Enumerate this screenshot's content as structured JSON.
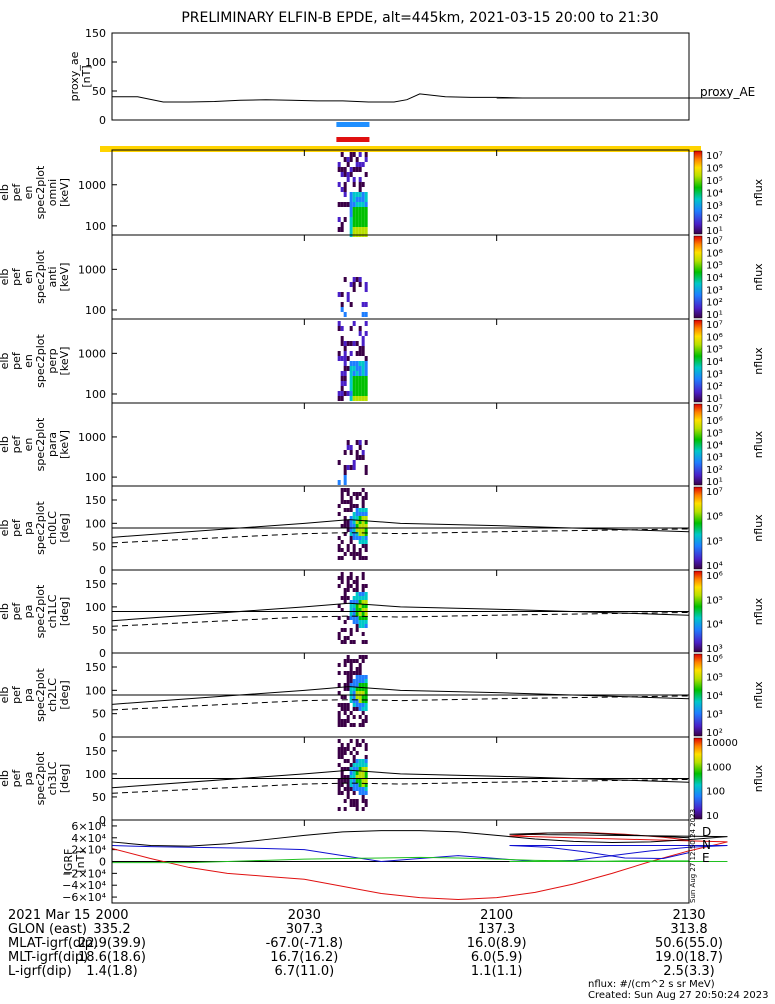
{
  "title": "PRELIMINARY ELFIN-B EPDE, alt=445km, 2021-03-15 20:00 to 21:30",
  "colors": {
    "science_zone_blue": "#1f8fff",
    "science_zone_red": "#e01010",
    "orbit_bar_yellow": "#ffd400",
    "mag_D": "#e01010",
    "mag_N": "#1010d0",
    "mag_E": "#20c020"
  },
  "chart_data": [
    {
      "type": "line",
      "name": "proxy_ae",
      "ylabel": [
        "proxy_ae",
        "[nT]"
      ],
      "ylim": [
        0,
        150
      ],
      "yticks": [
        "150",
        "100",
        "50",
        "0"
      ],
      "legend": "proxy_AE",
      "x": [
        2000,
        2004,
        2008,
        2012,
        2016,
        2020,
        2024,
        2028,
        2032,
        2036,
        2040,
        2044,
        2046,
        2048,
        2052,
        2056,
        2060,
        2064,
        2068,
        2072,
        2076,
        2080,
        2084,
        2088,
        2092,
        2096,
        2100,
        2104,
        2108,
        2112,
        2116,
        2120,
        2124,
        2130
      ],
      "values": [
        40,
        40,
        31,
        31,
        32,
        34,
        35,
        34,
        33,
        33,
        31,
        31,
        35,
        45,
        40,
        39,
        39,
        38,
        38,
        38,
        38,
        38,
        38,
        38,
        38,
        38,
        38,
        38,
        38,
        38,
        38,
        38,
        38,
        38
      ]
    },
    {
      "type": "heatmap",
      "name": "energy-omni",
      "ylabel": [
        "elb",
        "pef",
        "en",
        "spec2plot",
        "omni",
        "[keV]"
      ],
      "ylim": [
        60,
        7000
      ],
      "yscale": "log",
      "yticks": [
        "1000",
        "100"
      ],
      "colorbar_ticks": [
        "10⁷",
        "10⁶",
        "10⁵",
        "10⁴",
        "10³",
        "10²",
        "10¹"
      ],
      "colorbar_label": "nflux"
    },
    {
      "type": "heatmap",
      "name": "energy-anti",
      "ylabel": [
        "elb",
        "pef",
        "en",
        "spec2plot",
        "anti",
        "[keV]"
      ],
      "ylim": [
        60,
        7000
      ],
      "yscale": "log",
      "yticks": [
        "1000",
        "100"
      ],
      "colorbar_ticks": [
        "10⁷",
        "10⁶",
        "10⁵",
        "10⁴",
        "10³",
        "10²",
        "10¹"
      ],
      "colorbar_label": "nflux"
    },
    {
      "type": "heatmap",
      "name": "energy-perp",
      "ylabel": [
        "elb",
        "pef",
        "en",
        "spec2plot",
        "perp",
        "[keV]"
      ],
      "ylim": [
        60,
        7000
      ],
      "yscale": "log",
      "yticks": [
        "1000",
        "100"
      ],
      "colorbar_ticks": [
        "10⁷",
        "10⁶",
        "10⁵",
        "10⁴",
        "10³",
        "10²",
        "10¹"
      ],
      "colorbar_label": "nflux"
    },
    {
      "type": "heatmap",
      "name": "energy-para",
      "ylabel": [
        "elb",
        "pef",
        "en",
        "spec2plot",
        "para",
        "[keV]"
      ],
      "ylim": [
        60,
        7000
      ],
      "yscale": "log",
      "yticks": [
        "1000",
        "100"
      ],
      "colorbar_ticks": [
        "10⁷",
        "10⁶",
        "10⁵",
        "10⁴",
        "10³",
        "10²",
        "10¹"
      ],
      "colorbar_label": "nflux"
    },
    {
      "type": "heatmap",
      "name": "pitch-ch0",
      "ylabel": [
        "elb",
        "pef",
        "pa",
        "spec2plot",
        "ch0LC",
        "[deg]"
      ],
      "ylim": [
        0,
        180
      ],
      "yticks": [
        "150",
        "100",
        "50",
        "0"
      ],
      "colorbar_ticks": [
        "10⁷",
        "10⁶",
        "10⁵",
        "10⁴"
      ],
      "colorbar_label": "nflux"
    },
    {
      "type": "heatmap",
      "name": "pitch-ch1",
      "ylabel": [
        "elb",
        "pef",
        "pa",
        "spec2plot",
        "ch1LC",
        "[deg]"
      ],
      "ylim": [
        0,
        180
      ],
      "yticks": [
        "150",
        "100",
        "50",
        "0"
      ],
      "colorbar_ticks": [
        "10⁶",
        "10⁵",
        "10⁴",
        "10³"
      ],
      "colorbar_label": "nflux"
    },
    {
      "type": "heatmap",
      "name": "pitch-ch2",
      "ylabel": [
        "elb",
        "pef",
        "pa",
        "spec2plot",
        "ch2LC",
        "[deg]"
      ],
      "ylim": [
        0,
        180
      ],
      "yticks": [
        "150",
        "100",
        "50",
        "0"
      ],
      "colorbar_ticks": [
        "10⁶",
        "10⁵",
        "10⁴",
        "10³",
        "10²"
      ],
      "colorbar_label": "nflux"
    },
    {
      "type": "heatmap",
      "name": "pitch-ch3",
      "ylabel": [
        "elb",
        "pef",
        "pa",
        "spec2plot",
        "ch3LC",
        "[deg]"
      ],
      "ylim": [
        0,
        180
      ],
      "yticks": [
        "150",
        "100",
        "50",
        "0"
      ],
      "colorbar_ticks": [
        "10000",
        "1000",
        "100",
        "10"
      ],
      "colorbar_label": "nflux"
    },
    {
      "type": "line",
      "name": "igrf",
      "ylabel": [
        "IGRF",
        "[nT]"
      ],
      "ylim": [
        -70000,
        70000
      ],
      "yticks": [
        "6×10⁴",
        "4×10⁴",
        "2×10⁴",
        "0",
        "−2×10⁴",
        "−4×10⁴",
        "−6×10⁴"
      ],
      "x": [
        2000,
        2006,
        2012,
        2018,
        2024,
        2030,
        2036,
        2042,
        2048,
        2054,
        2060,
        2066,
        2072,
        2078,
        2084,
        2090,
        2096,
        2102,
        2108,
        2114,
        2120,
        2126,
        2130
      ],
      "series": [
        {
          "name": "D",
          "color": "#e01010",
          "values": [
            22000,
            5000,
            -10000,
            -20000,
            -25000,
            -30000,
            -42000,
            -54000,
            -61000,
            -64000,
            -61000,
            -52000,
            -38000,
            -20000,
            0,
            18000,
            33000,
            43000,
            48000,
            49000,
            46000,
            41000,
            36000
          ]
        },
        {
          "name": "N",
          "color": "#1010d0",
          "values": [
            27000,
            25000,
            24000,
            23000,
            22000,
            20000,
            10000,
            0,
            5000,
            10000,
            5000,
            0,
            2000,
            10000,
            18000,
            24000,
            27000,
            27000,
            24000,
            16000,
            6000,
            5000,
            15000
          ]
        },
        {
          "name": "E",
          "color": "#20c020",
          "values": [
            -2000,
            -2000,
            -2000,
            0,
            2000,
            4000,
            5000,
            6000,
            7000,
            6000,
            4000,
            2000,
            1000,
            0,
            0,
            0,
            0,
            0,
            0,
            0,
            1000,
            1000,
            1000
          ]
        },
        {
          "name": "total",
          "color": "#000000",
          "values": [
            33000,
            27000,
            26000,
            30000,
            37000,
            44000,
            50000,
            52000,
            52000,
            50000,
            44000,
            38000,
            34000,
            32000,
            33000,
            37000,
            42000,
            46000,
            48000,
            48000,
            45000,
            42000,
            40000
          ]
        }
      ],
      "legend": [
        "D",
        "N",
        "E"
      ]
    }
  ],
  "time_axis": {
    "date_label": "2021 Mar 15",
    "ticks": [
      "2000",
      "2030",
      "2100",
      "2130"
    ]
  },
  "ephemeris": {
    "rows": [
      {
        "label": "GLON (east)",
        "values": [
          "335.2",
          "307.3",
          "137.3",
          "313.8"
        ]
      },
      {
        "label": "MLAT-igrf(dip)",
        "values": [
          "22.9(39.9)",
          "-67.0(-71.8)",
          "16.0(8.9)",
          "50.6(55.0)"
        ]
      },
      {
        "label": "MLT-igrf(dip)",
        "values": [
          "18.6(18.6)",
          "16.7(16.2)",
          "6.0(5.9)",
          "19.0(18.7)"
        ]
      },
      {
        "label": "L-igrf(dip)",
        "values": [
          "1.4(1.8)",
          "6.7(11.0)",
          "1.1(1.1)",
          "2.5(3.3)"
        ]
      }
    ]
  },
  "side_note": "Sun Aug 27 12:50:24 2023",
  "footer": {
    "units": "nflux: #/(cm^2 s sr MeV)",
    "created": "Created: Sun Aug 27 20:50:24 2023"
  }
}
